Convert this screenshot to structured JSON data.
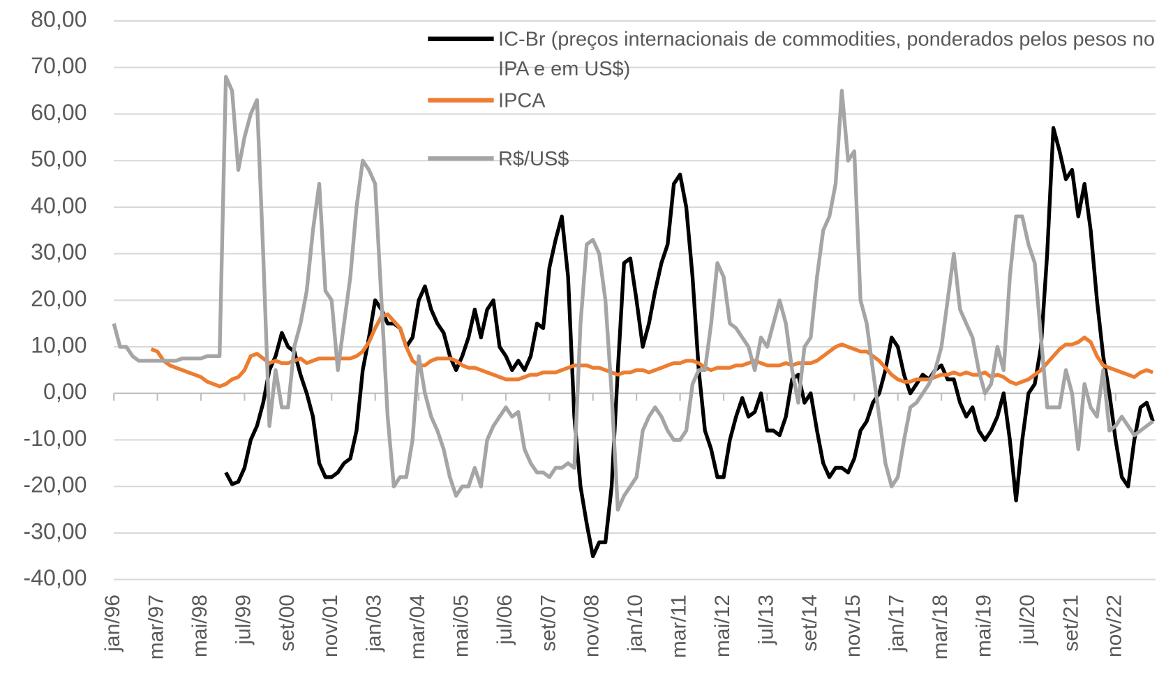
{
  "chart_data": {
    "type": "line",
    "categories": [
      "jan/96",
      null,
      null,
      null,
      null,
      null,
      null,
      "mar/97",
      null,
      null,
      null,
      null,
      null,
      null,
      "mai/98",
      null,
      null,
      null,
      null,
      null,
      null,
      "jul/99",
      null,
      null,
      null,
      null,
      null,
      null,
      "set/00",
      null,
      null,
      null,
      null,
      null,
      null,
      "nov/01",
      null,
      null,
      null,
      null,
      null,
      null,
      "jan/03",
      null,
      null,
      null,
      null,
      null,
      null,
      "mar/04",
      null,
      null,
      null,
      null,
      null,
      null,
      "mai/05",
      null,
      null,
      null,
      null,
      null,
      null,
      "jul/06",
      null,
      null,
      null,
      null,
      null,
      null,
      "set/07",
      null,
      null,
      null,
      null,
      null,
      null,
      "nov/08",
      null,
      null,
      null,
      null,
      null,
      null,
      "jan/10",
      null,
      null,
      null,
      null,
      null,
      null,
      "mar/11",
      null,
      null,
      null,
      null,
      null,
      null,
      "mai/12",
      null,
      null,
      null,
      null,
      null,
      null,
      "jul/13",
      null,
      null,
      null,
      null,
      null,
      null,
      "set/14",
      null,
      null,
      null,
      null,
      null,
      null,
      "nov/15",
      null,
      null,
      null,
      null,
      null,
      null,
      "jan/17",
      null,
      null,
      null,
      null,
      null,
      null,
      "mar/18",
      null,
      null,
      null,
      null,
      null,
      null,
      "mai/19",
      null,
      null,
      null,
      null,
      null,
      null,
      "jul/20",
      null,
      null,
      null,
      null,
      null,
      null,
      "set/21",
      null,
      null,
      null,
      null,
      null,
      null,
      "nov/22",
      null,
      null,
      null,
      null,
      null,
      null
    ],
    "series": [
      {
        "name": "IC-Br (preços internacionais de commodities, ponderados pelos pesos no IPA e em US$)",
        "color": "#000000",
        "values": [
          null,
          null,
          null,
          null,
          null,
          null,
          null,
          null,
          null,
          null,
          null,
          null,
          null,
          null,
          null,
          null,
          null,
          null,
          -17,
          -19.5,
          -19,
          -16,
          -10,
          -7,
          -2,
          5,
          8,
          13,
          10,
          9,
          4,
          0,
          -5,
          -15,
          -18,
          -18,
          -17,
          -15,
          -14,
          -8,
          5,
          12,
          20,
          18,
          15,
          15,
          14,
          10,
          12,
          20,
          23,
          18,
          15,
          13,
          8,
          5,
          8,
          12,
          18,
          12,
          18,
          20,
          10,
          8,
          5,
          7,
          5,
          8,
          15,
          14,
          27,
          33,
          38,
          25,
          -5,
          -20,
          -28,
          -35,
          -32,
          -32,
          -20,
          5,
          28,
          29,
          20,
          10,
          15,
          22,
          28,
          32,
          45,
          47,
          40,
          25,
          5,
          -8,
          -12,
          -18,
          -18,
          -10,
          -5,
          -1,
          -5,
          -4,
          0,
          -8,
          -8,
          -9,
          -5,
          3,
          4,
          -2,
          0,
          -8,
          -15,
          -18,
          -16,
          -16,
          -17,
          -14,
          -8,
          -6,
          -2,
          0,
          5,
          12,
          10,
          4,
          0,
          2,
          4,
          3,
          5,
          6,
          3,
          3,
          -2,
          -5,
          -3,
          -8,
          -10,
          -8,
          -5,
          0,
          -10,
          -23,
          -10,
          0,
          2,
          10,
          30,
          57,
          52,
          46,
          48,
          38,
          45,
          35,
          20,
          8,
          0,
          -10,
          -18,
          -20,
          -10,
          -3,
          -2,
          -6
        ]
      },
      {
        "name": "IPCA",
        "color": "#ed7d31",
        "values": [
          null,
          null,
          null,
          null,
          null,
          null,
          9.5,
          9,
          7,
          6,
          5.5,
          5,
          4.5,
          4,
          3.5,
          2.5,
          2,
          1.5,
          2,
          3,
          3.5,
          5,
          8,
          8.5,
          7.5,
          6.5,
          7,
          6.5,
          6.5,
          7,
          7.5,
          6.5,
          7,
          7.5,
          7.5,
          7.5,
          7.5,
          7.5,
          7.5,
          8,
          9,
          11,
          14,
          16.5,
          17,
          15.5,
          14,
          10,
          7,
          6,
          6,
          7,
          7.5,
          7.5,
          7.5,
          7,
          6,
          5.5,
          5.5,
          5,
          4.5,
          4,
          3.5,
          3,
          3,
          3,
          3.5,
          4,
          4,
          4.5,
          4.5,
          4.5,
          5,
          5.5,
          6,
          6,
          6,
          5.5,
          5.5,
          5,
          4.5,
          4,
          4.5,
          4.5,
          5,
          5,
          4.5,
          5,
          5.5,
          6,
          6.5,
          6.5,
          7,
          7,
          6.5,
          5.5,
          5,
          5.5,
          5.5,
          5.5,
          6,
          6,
          6.5,
          7,
          6.5,
          6,
          6,
          6,
          6.5,
          6,
          6.5,
          6.5,
          6.5,
          7,
          8,
          9,
          10,
          10.5,
          10,
          9.5,
          9,
          9,
          8,
          7,
          5.5,
          4,
          3,
          2.5,
          2.5,
          3,
          3,
          3,
          3.5,
          4,
          4,
          4.5,
          4,
          4.5,
          4,
          4,
          4.5,
          3.5,
          4,
          3.5,
          2.5,
          2,
          2.5,
          3,
          4,
          5,
          6.5,
          8,
          9.5,
          10.5,
          10.5,
          11,
          12,
          11,
          8,
          6,
          5.5,
          5,
          4.5,
          4,
          3.5,
          4.5,
          5,
          4.5
        ]
      },
      {
        "name": "R$/US$",
        "color": "#a5a5a5",
        "values": [
          15,
          10,
          10,
          8,
          7,
          7,
          7,
          7,
          7,
          7,
          7,
          7.5,
          7.5,
          7.5,
          7.5,
          8,
          8,
          8,
          68,
          65,
          48,
          55,
          60,
          63,
          30,
          -7,
          5,
          -3,
          -3,
          10,
          15,
          22,
          35,
          45,
          22,
          20,
          5,
          15,
          25,
          40,
          50,
          48,
          45,
          20,
          -5,
          -20,
          -18,
          -18,
          -10,
          8,
          0,
          -5,
          -8,
          -12,
          -18,
          -22,
          -20,
          -20,
          -16,
          -20,
          -10,
          -7,
          -5,
          -3,
          -5,
          -4,
          -12,
          -15,
          -17,
          -17,
          -18,
          -16,
          -16,
          -15,
          -16,
          15,
          32,
          33,
          30,
          20,
          0,
          -25,
          -22,
          -20,
          -18,
          -8,
          -5,
          -3,
          -5,
          -8,
          -10,
          -10,
          -8,
          2,
          5,
          5,
          15,
          28,
          25,
          15,
          14,
          12,
          10,
          5,
          12,
          10,
          15,
          20,
          15,
          5,
          -2,
          10,
          12,
          25,
          35,
          38,
          45,
          65,
          50,
          52,
          20,
          15,
          5,
          -5,
          -15,
          -20,
          -18,
          -10,
          -3,
          -2,
          0,
          2,
          5,
          10,
          20,
          30,
          18,
          15,
          12,
          5,
          0,
          2,
          10,
          5,
          25,
          38,
          38,
          32,
          28,
          12,
          -3,
          -3,
          -3,
          5,
          0,
          -12,
          2,
          -3,
          -5,
          5,
          -8,
          -7,
          -5,
          -7,
          -9,
          -8,
          -7,
          -6
        ]
      }
    ],
    "ylim": [
      -40,
      80
    ],
    "yticks": [
      {
        "value": -40,
        "label": "-40,00"
      },
      {
        "value": -30,
        "label": "-30,00"
      },
      {
        "value": -20,
        "label": "-20,00"
      },
      {
        "value": -10,
        "label": "-10,00"
      },
      {
        "value": 0,
        "label": "0,00"
      },
      {
        "value": 10,
        "label": "10,00"
      },
      {
        "value": 20,
        "label": "20,00"
      },
      {
        "value": 30,
        "label": "30,00"
      },
      {
        "value": 40,
        "label": "40,00"
      },
      {
        "value": 50,
        "label": "50,00"
      },
      {
        "value": 60,
        "label": "60,00"
      },
      {
        "value": 70,
        "label": "70,00"
      },
      {
        "value": 80,
        "label": "80,00"
      }
    ],
    "grid": true
  }
}
